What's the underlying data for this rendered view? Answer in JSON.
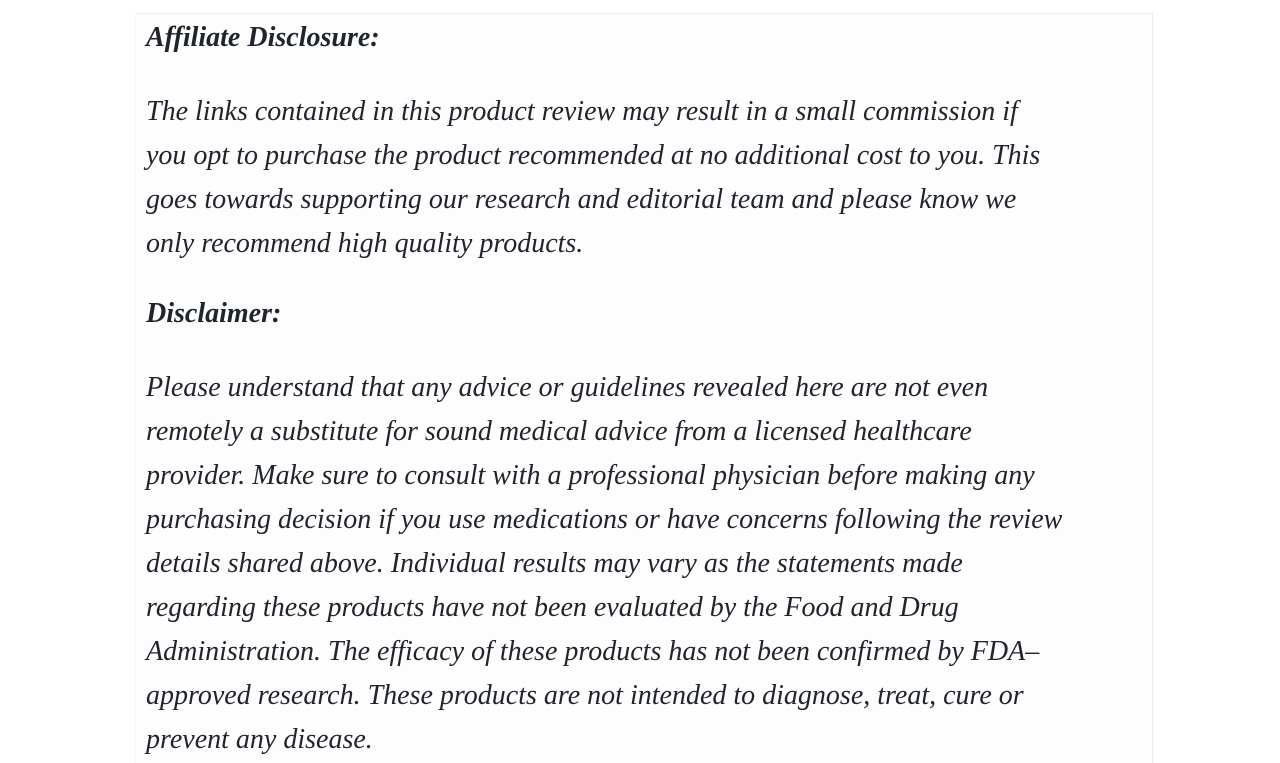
{
  "page": {
    "background_color": "#ffffff",
    "column_background_color": "#fdfdfd",
    "text_color": "#20242c"
  },
  "sections": [
    {
      "heading": "Affiliate Disclosure:",
      "lines": [
        "The links contained in this product review may result in a small commission if",
        "you opt to purchase the product recommended at no additional cost to you. This",
        "goes towards supporting our research and editorial team and please know we",
        "only recommend high quality products."
      ]
    },
    {
      "heading": "Disclaimer:",
      "lines": [
        "Please understand that any advice or guidelines revealed here are not even",
        "remotely a substitute for sound medical advice from a licensed healthcare",
        "provider. Make sure to consult with a professional physician before making any",
        "purchasing decision if you use medications or have concerns following the review",
        "details shared above. Individual results may vary as the statements made",
        "regarding these products have not been evaluated by the Food and Drug",
        "Administration. The efficacy of these products has not been confirmed by FDA–",
        "approved research. These products are not intended to diagnose, treat, cure or",
        "prevent any disease."
      ]
    }
  ]
}
